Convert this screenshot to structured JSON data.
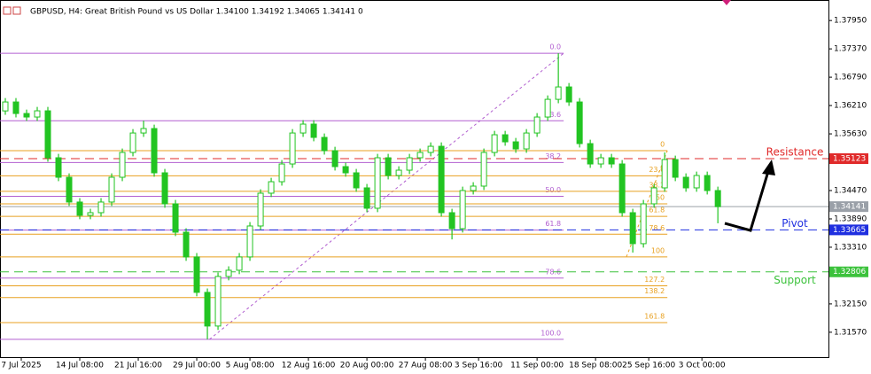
{
  "chart_data": {
    "type": "candlestick",
    "title": "GBPUSD, H4:  Great British Pound vs US Dollar  1.34100 1.34192 1.34065 1.34141  0",
    "color": "#22c422",
    "x": [
      0,
      1,
      2,
      3,
      4,
      5,
      6,
      7,
      8,
      9,
      10,
      11,
      12,
      13,
      14,
      15,
      16,
      17,
      18,
      19,
      20,
      21,
      22,
      23,
      24,
      25,
      26,
      27,
      28,
      29,
      30,
      31,
      32,
      33,
      34,
      35,
      36,
      37,
      38,
      39,
      40,
      41,
      42,
      43,
      44,
      45,
      46,
      47,
      48,
      49,
      50,
      51,
      52,
      53,
      54,
      55,
      56,
      57,
      58,
      59,
      60,
      61,
      62,
      63,
      64,
      65,
      66,
      67
    ],
    "open": [
      1.361,
      1.36283,
      1.36047,
      1.35975,
      1.36102,
      1.35141,
      1.34742,
      1.34235,
      1.33963,
      1.34017,
      1.34235,
      1.34742,
      1.3525,
      1.35648,
      1.35739,
      1.34833,
      1.34198,
      1.33618,
      1.33111,
      1.32386,
      1.31697,
      1.32712,
      1.32839,
      1.33111,
      1.33745,
      1.34416,
      1.34651,
      1.35014,
      1.35648,
      1.3583,
      1.35558,
      1.35286,
      1.3496,
      1.34833,
      1.34525,
      1.34108,
      1.35141,
      1.34778,
      1.34887,
      1.35141,
      1.3525,
      1.35376,
      1.34017,
      1.33691,
      1.3447,
      1.34561,
      1.3525,
      1.35612,
      1.35467,
      1.35322,
      1.35648,
      1.35975,
      1.36337,
      1.36591,
      1.36283,
      1.35431,
      1.35014,
      1.35141,
      1.35014,
      1.34017,
      1.33383,
      1.34198,
      1.34525,
      1.35105,
      1.34742,
      1.34525,
      1.34778,
      1.3447
    ],
    "high": [
      1.36363,
      1.36363,
      1.36127,
      1.36182,
      1.36182,
      1.35221,
      1.34822,
      1.34315,
      1.34097,
      1.34315,
      1.34822,
      1.3533,
      1.35728,
      1.359,
      1.35819,
      1.34913,
      1.34278,
      1.33698,
      1.33191,
      1.32466,
      1.32792,
      1.32919,
      1.33191,
      1.33825,
      1.34496,
      1.34731,
      1.35094,
      1.35728,
      1.3591,
      1.3591,
      1.35638,
      1.35366,
      1.3504,
      1.34913,
      1.34605,
      1.35221,
      1.35221,
      1.34967,
      1.35221,
      1.3533,
      1.35456,
      1.35456,
      1.34097,
      1.3455,
      1.34641,
      1.3533,
      1.35692,
      1.35692,
      1.35547,
      1.35728,
      1.36055,
      1.36417,
      1.3728,
      1.36671,
      1.36363,
      1.35511,
      1.35221,
      1.35221,
      1.35094,
      1.34097,
      1.34278,
      1.34605,
      1.3525,
      1.35185,
      1.34822,
      1.34858,
      1.34858,
      1.3455
    ],
    "low": [
      1.3602,
      1.35967,
      1.35895,
      1.35895,
      1.35061,
      1.34662,
      1.34155,
      1.33883,
      1.33883,
      1.33937,
      1.34155,
      1.34662,
      1.3517,
      1.35568,
      1.34753,
      1.34118,
      1.33538,
      1.33031,
      1.32306,
      1.31425,
      1.31617,
      1.32632,
      1.32759,
      1.33031,
      1.33665,
      1.34336,
      1.34571,
      1.34934,
      1.35568,
      1.35478,
      1.35206,
      1.3488,
      1.34753,
      1.34445,
      1.34028,
      1.34028,
      1.34698,
      1.34698,
      1.34807,
      1.35061,
      1.3517,
      1.33937,
      1.3347,
      1.33611,
      1.3439,
      1.34481,
      1.3517,
      1.35387,
      1.35242,
      1.35242,
      1.35568,
      1.35895,
      1.36257,
      1.36203,
      1.35351,
      1.34934,
      1.34934,
      1.34934,
      1.33937,
      1.33201,
      1.33303,
      1.34118,
      1.34445,
      1.34662,
      1.34445,
      1.34445,
      1.3439,
      1.338
    ],
    "close": [
      1.36283,
      1.36047,
      1.35975,
      1.36102,
      1.35141,
      1.34742,
      1.34235,
      1.33963,
      1.34017,
      1.34235,
      1.34742,
      1.3525,
      1.35648,
      1.35739,
      1.34833,
      1.34198,
      1.33618,
      1.33111,
      1.32386,
      1.31697,
      1.32712,
      1.32839,
      1.33111,
      1.33745,
      1.34416,
      1.34651,
      1.35014,
      1.35648,
      1.3583,
      1.35558,
      1.35286,
      1.3496,
      1.34833,
      1.34525,
      1.34108,
      1.35141,
      1.34778,
      1.34887,
      1.35141,
      1.3525,
      1.35376,
      1.34017,
      1.33691,
      1.3447,
      1.34561,
      1.3525,
      1.35612,
      1.35467,
      1.35322,
      1.35648,
      1.35975,
      1.36337,
      1.36591,
      1.36283,
      1.35431,
      1.35014,
      1.35141,
      1.35014,
      1.34017,
      1.33383,
      1.34198,
      1.34525,
      1.35105,
      1.34742,
      1.34525,
      1.34778,
      1.3447,
      1.34141
    ],
    "xlim": [
      -0.5,
      77.4
    ],
    "xticks": [
      {
        "value": 1.5,
        "label": "7 Jul 2025"
      },
      {
        "value": 7,
        "label": "14 Jul 08:00"
      },
      {
        "value": 12.5,
        "label": "21 Jul 16:00"
      },
      {
        "value": 18,
        "label": "29 Jul 00:00"
      },
      {
        "value": 23,
        "label": "5 Aug 08:00"
      },
      {
        "value": 28.5,
        "label": "12 Aug 16:00"
      },
      {
        "value": 34,
        "label": "20 Aug 00:00"
      },
      {
        "value": 39.5,
        "label": "27 Aug 08:00"
      },
      {
        "value": 44.5,
        "label": "3 Sep 16:00"
      },
      {
        "value": 50,
        "label": "11 Sep 00:00"
      },
      {
        "value": 55.5,
        "label": "18 Sep 08:00"
      },
      {
        "value": 60.5,
        "label": "25 Sep 16:00"
      },
      {
        "value": 65.5,
        "label": "3 Oct 00:00"
      }
    ],
    "ylim": [
      1.3106,
      1.3837
    ],
    "yticks": [
      {
        "value": 1.3795,
        "label": "1.37950"
      },
      {
        "value": 1.3737,
        "label": "1.37370"
      },
      {
        "value": 1.3679,
        "label": "1.36790"
      },
      {
        "value": 1.3621,
        "label": "1.36210"
      },
      {
        "value": 1.3563,
        "label": "1.35630"
      },
      {
        "value": 1.3447,
        "label": "1.34470"
      },
      {
        "value": 1.3389,
        "label": "1.33890"
      },
      {
        "value": 1.3331,
        "label": "1.33310"
      },
      {
        "value": 1.3215,
        "label": "1.32150"
      },
      {
        "value": 1.3157,
        "label": "1.31570"
      }
    ],
    "last_price": 1.34141,
    "last_color": "#9aa0a8",
    "hlines": [
      {
        "name": "Resistance",
        "value": 1.35123,
        "color": "#e02a2a"
      },
      {
        "name": "Pivot",
        "value": 1.33665,
        "color": "#1f2fe0"
      },
      {
        "name": "Support",
        "value": 1.32806,
        "color": "#3cc23c"
      }
    ],
    "fibs": [
      {
        "color": "#b25fd0",
        "high": 1.3728,
        "low": 1.31425,
        "x_high": 52.5,
        "x_low": 19.2,
        "levels": [
          {
            "value": 0,
            "label": "0.0"
          },
          23.6,
          38.2,
          {
            "value": 50,
            "label": "50.0"
          },
          61.8,
          78.6,
          {
            "value": 100,
            "label": "100.0"
          }
        ]
      },
      {
        "color": "#e8a020",
        "high": 1.35286,
        "low": 1.33111,
        "x_high": 62.25,
        "x_low": 58.4,
        "levels": [
          0,
          23.6,
          38.2,
          50,
          61.8,
          78.6,
          100,
          127.2,
          138.2,
          161.8
        ]
      }
    ]
  }
}
